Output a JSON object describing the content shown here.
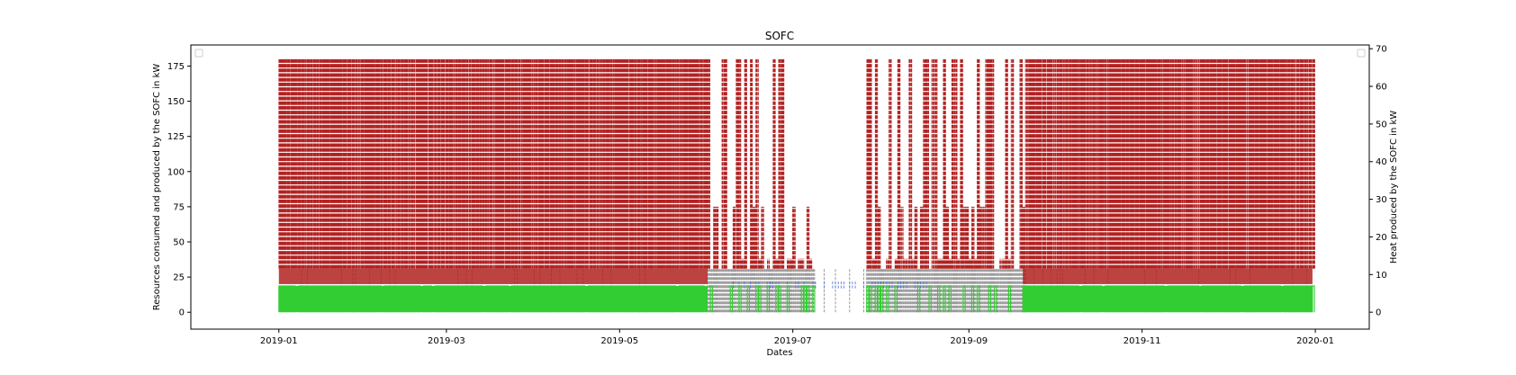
{
  "chart_data": {
    "type": "line",
    "title": "SOFC",
    "xlabel": "Dates",
    "ylabel_left": "Resources consumed and produced by the SOFC in kW",
    "ylabel_right": "Heat produced by the SOFC in kW",
    "xlim": [
      "2018-12-01",
      "2020-01-20"
    ],
    "ylim_left": [
      -12,
      190
    ],
    "ylim_right": [
      -4.5,
      71
    ],
    "x_ticks": [
      "2019-01",
      "2019-03",
      "2019-05",
      "2019-07",
      "2019-09",
      "2019-11",
      "2020-01"
    ],
    "y_ticks_left": [
      0,
      25,
      50,
      75,
      100,
      125,
      150,
      175
    ],
    "y_ticks_right": [
      0,
      10,
      20,
      30,
      40,
      50,
      60,
      70
    ],
    "grid": false,
    "legend": "empty legend boxes at top-left and top-right",
    "date_range": [
      "2019-01-01",
      "2019-12-31"
    ],
    "series": [
      {
        "color": "#b22222",
        "axis": "left",
        "style": "dashed",
        "on_level": 180,
        "off_level": 31,
        "profile": "daily on/off cycling"
      },
      {
        "color": "#808080",
        "axis": "left",
        "style": "dashed",
        "on_level": 31,
        "off_level": 0
      },
      {
        "color": "#4169e1",
        "axis": "left",
        "style": "dashed",
        "on_level": 22,
        "off_level": 17
      },
      {
        "color": "#32cd32",
        "axis": "right",
        "style": "solid",
        "on_level": 7,
        "off_level": 0
      }
    ],
    "summer_low_operation": [
      "2019-06-01",
      "2019-09-20"
    ],
    "summer_shutdown": [
      "2019-07-09",
      "2019-07-26"
    ]
  }
}
